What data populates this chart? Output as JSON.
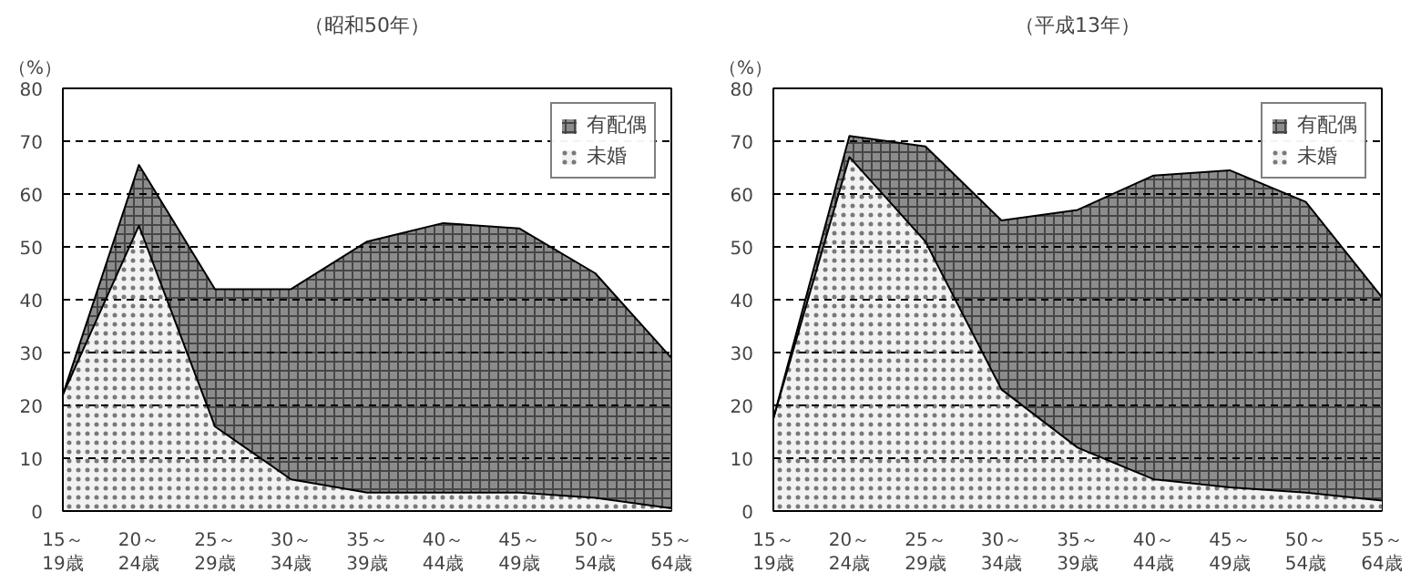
{
  "chart_data": [
    {
      "type": "area",
      "title": "（昭和50年）",
      "ylabel": "（%）",
      "stacked": true,
      "categories": [
        "15～\n19歳",
        "20～\n24歳",
        "25～\n29歳",
        "30～\n34歳",
        "35～\n39歳",
        "40～\n44歳",
        "45～\n49歳",
        "50～\n54歳",
        "55～\n64歳"
      ],
      "series": [
        {
          "name": "未婚",
          "color": "#f2f2f2",
          "values": [
            22,
            54,
            16,
            6,
            3.5,
            3.5,
            3.5,
            2.5,
            0.5
          ]
        },
        {
          "name": "有配偶",
          "color": "#8c8c8c",
          "values": [
            0,
            11.5,
            26,
            36,
            47.5,
            51,
            50,
            42.5,
            28.5
          ]
        }
      ],
      "ylim": [
        0,
        80
      ],
      "yticks": [
        0,
        10,
        20,
        30,
        40,
        50,
        60,
        70,
        80
      ],
      "grid": "y",
      "legend": "top right"
    },
    {
      "type": "area",
      "title": "（平成13年）",
      "ylabel": "（%）",
      "stacked": true,
      "categories": [
        "15～\n19歳",
        "20～\n24歳",
        "25～\n29歳",
        "30～\n34歳",
        "35～\n39歳",
        "40～\n44歳",
        "45～\n49歳",
        "50～\n54歳",
        "55～\n64歳"
      ],
      "series": [
        {
          "name": "未婚",
          "color": "#f2f2f2",
          "values": [
            17.5,
            67,
            51,
            23,
            12,
            6,
            4.5,
            3.5,
            2
          ]
        },
        {
          "name": "有配偶",
          "color": "#8c8c8c",
          "values": [
            0,
            4,
            18,
            32,
            45,
            57.5,
            60,
            55,
            38.5
          ]
        }
      ],
      "ylim": [
        0,
        80
      ],
      "yticks": [
        0,
        10,
        20,
        30,
        40,
        50,
        60,
        70,
        80
      ],
      "grid": "y",
      "legend": "top right"
    }
  ]
}
